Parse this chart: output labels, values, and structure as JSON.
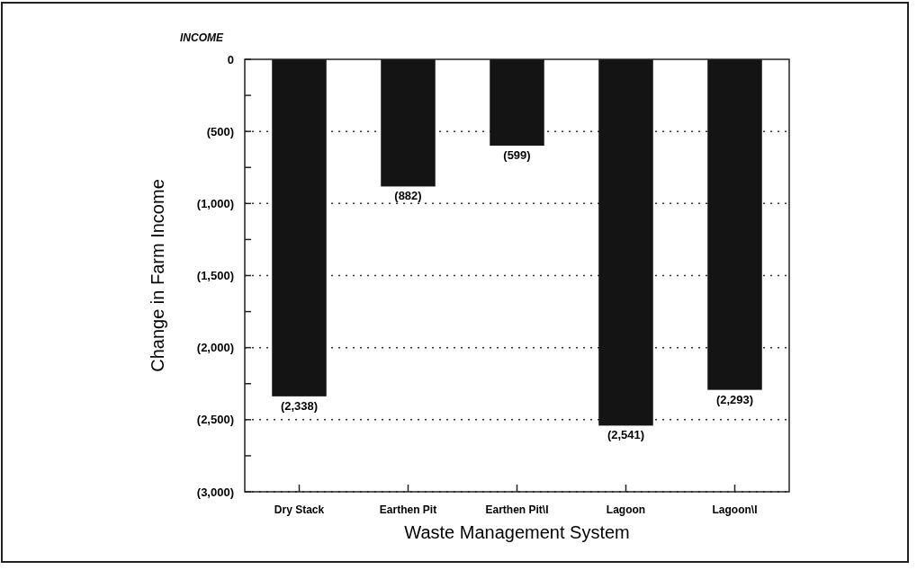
{
  "chart_data": {
    "type": "bar",
    "xlabel": "Waste Management System",
    "ylabel": "Change in Farm Income",
    "annotations": [
      "INCOME"
    ],
    "categories": [
      "Dry Stack",
      "Earthen Pit",
      "Earthen Pit\\I",
      "Lagoon",
      "Lagoon\\I"
    ],
    "values": [
      -2338,
      -882,
      -599,
      -2541,
      -2293
    ],
    "color": "#141414",
    "value_labels": [
      "(2,338)",
      "(882)",
      "(599)",
      "(2,541)",
      "(2,293)"
    ],
    "ylim": [
      -3000,
      0
    ],
    "yticks": [
      0,
      {
        "value": -250,
        "label": null
      },
      {
        "value": -500,
        "label": "(500)"
      },
      {
        "value": -750,
        "label": null
      },
      {
        "value": -1000,
        "label": "(1,000)"
      },
      {
        "value": -1250,
        "label": null
      },
      {
        "value": -1500,
        "label": "(1,500)"
      },
      {
        "value": -1750,
        "label": null
      },
      {
        "value": -2000,
        "label": "(2,000)"
      },
      {
        "value": -2250,
        "label": null
      },
      {
        "value": -2500,
        "label": "(2,500)"
      },
      {
        "value": -2750,
        "label": null
      },
      {
        "value": -3000,
        "label": "(3,000)"
      }
    ],
    "grid": "y"
  }
}
